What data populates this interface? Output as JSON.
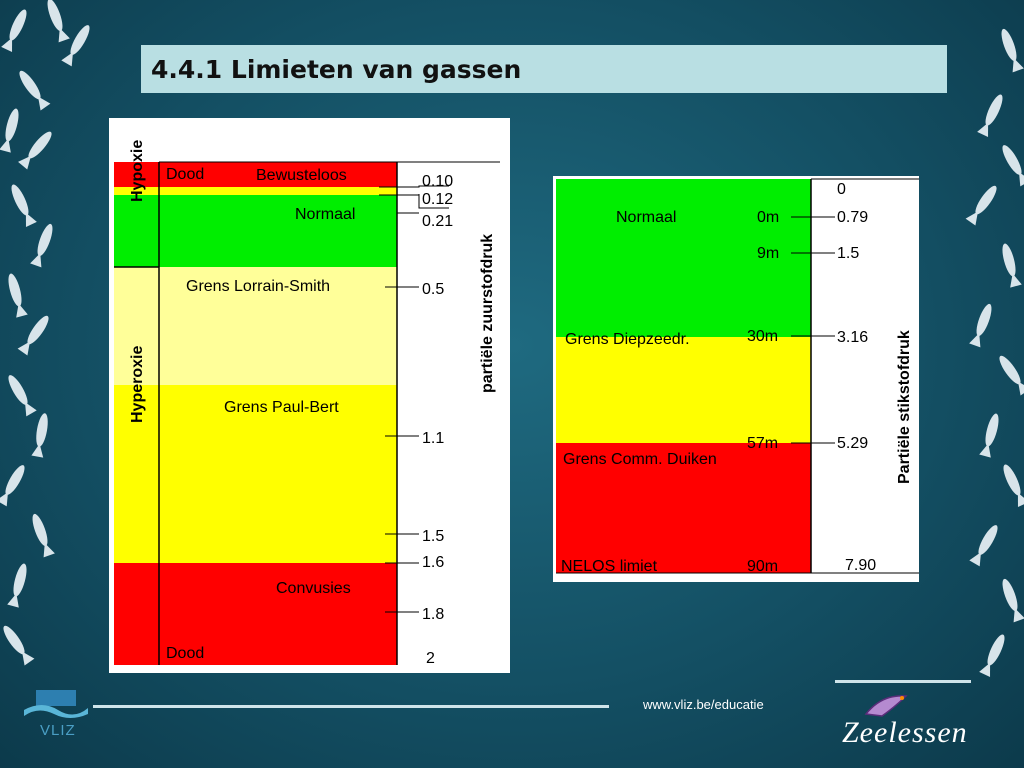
{
  "slide": {
    "title": "4.4.1 Limieten van gassen",
    "footer_url": "www.vliz.be/educatie",
    "logo_left_text": "VLIZ",
    "logo_right_text": "Zeelessen"
  },
  "oxygen_panel": {
    "axis_label": "partiële zuurstofdruk",
    "side_labels": [
      "Hypoxie",
      "Hyperoxie"
    ],
    "zones": [
      {
        "from": 0,
        "to": 0.1,
        "color": "#ff0000"
      },
      {
        "from": 0.1,
        "to": 0.12,
        "color": "#ffff00"
      },
      {
        "from": 0.12,
        "to": 0.21,
        "color": "#00ee00"
      },
      {
        "from": 0.21,
        "to": 0.5,
        "color": "#00ee00"
      },
      {
        "from": 0.5,
        "to": 1.1,
        "color": "#ffff99"
      },
      {
        "from": 1.1,
        "to": 1.6,
        "color": "#ffff00"
      },
      {
        "from": 1.6,
        "to": 2,
        "color": "#ff0000"
      }
    ],
    "zone_labels": [
      "Dood",
      "Bewusteloos",
      "Normaal",
      "Grens Lorrain-Smith",
      "Grens Paul-Bert",
      "Convusies",
      "Dood"
    ],
    "ticks": [
      "0.10",
      "0.12",
      "0.21",
      "0.5",
      "1.1",
      "1.5",
      "1.6",
      "1.8",
      "2"
    ]
  },
  "nitrogen_panel": {
    "axis_label": "Partiële stikstofdruk",
    "zones": [
      {
        "from": 0,
        "to": 3.16,
        "color": "#00ee00"
      },
      {
        "from": 3.16,
        "to": 5.29,
        "color": "#ffff00"
      },
      {
        "from": 5.29,
        "to": 7.9,
        "color": "#ff0000"
      }
    ],
    "zone_labels": [
      "Normaal",
      "Grens Diepzeedr.",
      "Grens Comm. Duiken",
      "NELOS limiet"
    ],
    "depths": [
      "0m",
      "9m",
      "30m",
      "57m",
      "90m"
    ],
    "ticks": [
      "0",
      "0.79",
      "1.5",
      "3.16",
      "5.29",
      "7.90"
    ]
  }
}
